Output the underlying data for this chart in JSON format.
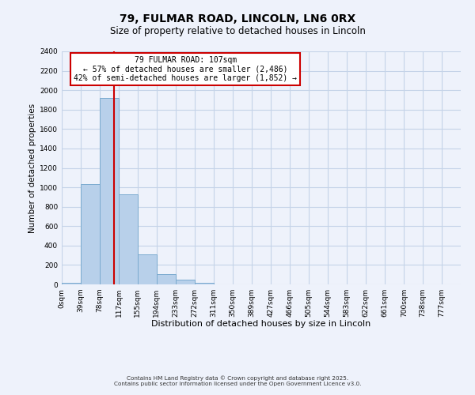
{
  "title": "79, FULMAR ROAD, LINCOLN, LN6 0RX",
  "subtitle": "Size of property relative to detached houses in Lincoln",
  "xlabel": "Distribution of detached houses by size in Lincoln",
  "ylabel": "Number of detached properties",
  "bar_color": "#b8d0ea",
  "bar_edge_color": "#7aaacf",
  "bin_labels": [
    "0sqm",
    "39sqm",
    "78sqm",
    "117sqm",
    "155sqm",
    "194sqm",
    "233sqm",
    "272sqm",
    "311sqm",
    "350sqm",
    "389sqm",
    "427sqm",
    "466sqm",
    "505sqm",
    "544sqm",
    "583sqm",
    "622sqm",
    "661sqm",
    "700sqm",
    "738sqm",
    "777sqm"
  ],
  "bar_heights": [
    15,
    1030,
    1920,
    930,
    310,
    105,
    50,
    20,
    0,
    0,
    0,
    0,
    0,
    0,
    0,
    0,
    0,
    0,
    0,
    0
  ],
  "property_line_x": 107,
  "bin_edges": [
    0,
    39,
    78,
    117,
    155,
    194,
    233,
    272,
    311,
    350,
    389,
    427,
    466,
    505,
    544,
    583,
    622,
    661,
    700,
    738,
    777
  ],
  "annotation_text": "79 FULMAR ROAD: 107sqm\n← 57% of detached houses are smaller (2,486)\n42% of semi-detached houses are larger (1,852) →",
  "annotation_box_color": "#ffffff",
  "annotation_box_edge": "#cc0000",
  "line_color": "#cc0000",
  "ylim": [
    0,
    2400
  ],
  "yticks": [
    0,
    200,
    400,
    600,
    800,
    1000,
    1200,
    1400,
    1600,
    1800,
    2000,
    2200,
    2400
  ],
  "footer1": "Contains HM Land Registry data © Crown copyright and database right 2025.",
  "footer2": "Contains public sector information licensed under the Open Government Licence v3.0.",
  "background_color": "#eef2fb",
  "grid_color": "#c5d3e8"
}
